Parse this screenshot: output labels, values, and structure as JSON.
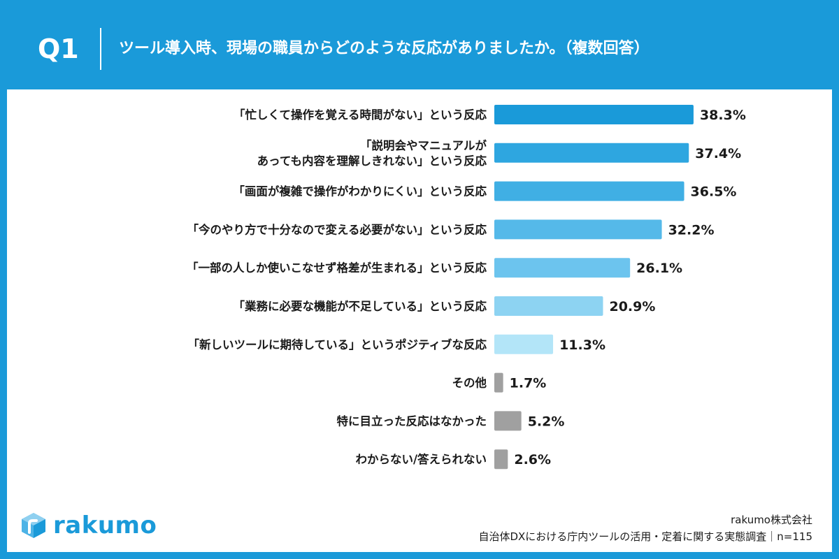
{
  "header": {
    "question_number": "Q1",
    "question_text": "ツール導入時、現場の職員からどのような反応がありましたか。（複数回答）"
  },
  "chart_data": {
    "type": "bar",
    "orientation": "horizontal",
    "categories": [
      [
        "「忙しくて操作を覚える時間がない」という反応"
      ],
      [
        "「説明会やマニュアルが",
        "あっても内容を理解しきれない」という反応"
      ],
      [
        "「画面が複雑で操作がわかりにくい」という反応"
      ],
      [
        "「今のやり方で十分なので変える必要がない」という反応"
      ],
      [
        "「一部の人しか使いこなせず格差が生まれる」という反応"
      ],
      [
        "「業務に必要な機能が不足している」という反応"
      ],
      [
        "「新しいツールに期待している」というポジティブな反応"
      ],
      [
        "その他"
      ],
      [
        "特に目立った反応はなかった"
      ],
      [
        "わからない/答えられない"
      ]
    ],
    "values": [
      38.3,
      37.4,
      36.5,
      32.2,
      26.1,
      20.9,
      11.3,
      1.7,
      5.2,
      2.6
    ],
    "value_labels": [
      "38.3%",
      "37.4%",
      "36.5%",
      "32.2%",
      "26.1%",
      "20.9%",
      "11.3%",
      "1.7%",
      "5.2%",
      "2.6%"
    ],
    "bar_colors": [
      "#1a9ad9",
      "#2ea6e0",
      "#40afe4",
      "#55b9e9",
      "#6cc4ee",
      "#8dd3f2",
      "#b3e5f8",
      "#a0a0a0",
      "#a0a0a0",
      "#a0a0a0"
    ],
    "xlim": [
      0,
      40
    ]
  },
  "footer": {
    "brand": "rakumo",
    "company": "rakumo株式会社",
    "survey": "自治体DXにおける庁内ツールの活用・定着に関する実態調査｜n=115"
  },
  "colors": {
    "accent": "#1a9ad9"
  }
}
